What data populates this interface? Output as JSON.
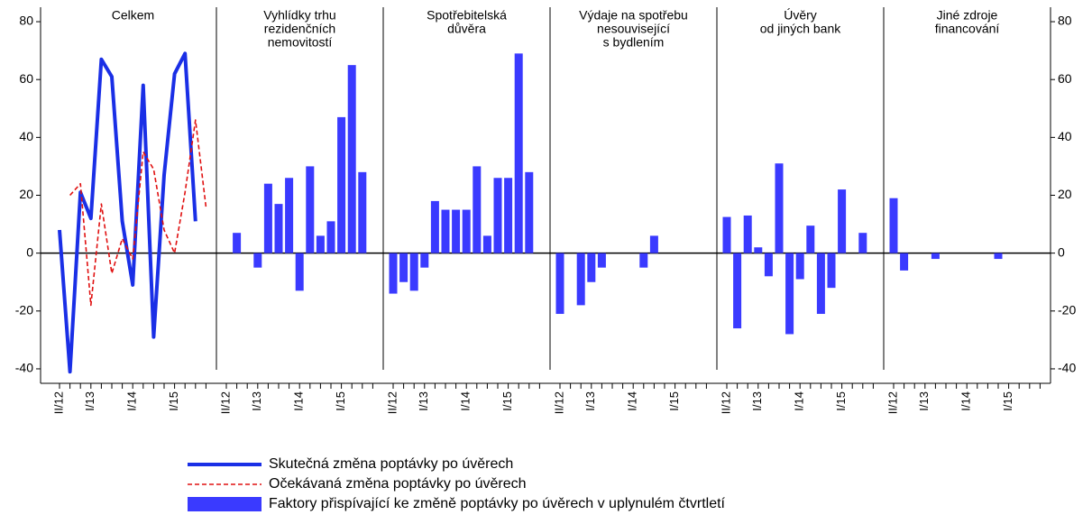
{
  "chart_data": {
    "type": "panel-bar",
    "ylim": [
      -45,
      85
    ],
    "yticks": [
      -40,
      -20,
      0,
      20,
      40,
      60,
      80
    ],
    "categories": [
      "II/12",
      null,
      null,
      "I/13",
      null,
      null,
      null,
      "I/14",
      null,
      null,
      null,
      "I/15",
      null,
      null,
      null
    ],
    "bar_name": "Faktory přispívající ke změně poptávky po úvěrech v uplynulém čtvrtletí",
    "bar_color": "#3a3aff",
    "series": [
      {
        "name": "Skutečná změna poptávky po úvěrech",
        "color": "#1a2fe6",
        "dash": false,
        "panel": 0,
        "values": [
          8,
          -41,
          21,
          12,
          67,
          61,
          11,
          -11,
          58,
          -29,
          27,
          62,
          69,
          11,
          null
        ]
      },
      {
        "name": "Očekávaná změna poptávky po úvěrech",
        "color": "#e01010",
        "dash": true,
        "panel": 0,
        "values": [
          null,
          20,
          24,
          -18,
          17,
          -7,
          5,
          -2,
          35,
          29,
          8,
          0,
          21,
          46,
          16
        ]
      }
    ],
    "panels": [
      {
        "title": [
          "Celkem"
        ],
        "values": null
      },
      {
        "title": [
          "Vyhlídky trhu",
          "rezidenčních",
          "nemovitostí"
        ],
        "values": [
          0,
          7,
          0,
          -5,
          24,
          17,
          26,
          -13,
          30,
          6,
          11,
          47,
          65,
          28
        ]
      },
      {
        "title": [
          "Spotřebitelská",
          "důvěra"
        ],
        "values": [
          -14,
          -10,
          -13,
          -5,
          18,
          15,
          15,
          15,
          30,
          6,
          26,
          26,
          69,
          28
        ]
      },
      {
        "title": [
          "Výdaje na spotřebu",
          "nesouvisející",
          "s bydlením"
        ],
        "values": [
          -21,
          0,
          -18,
          -10,
          -5,
          0,
          0,
          0,
          -5,
          6,
          0,
          0,
          0,
          0
        ]
      },
      {
        "title": [
          "Úvěry",
          "od jiných bank"
        ],
        "values": [
          12.5,
          -26,
          13,
          2,
          -8,
          31,
          -28,
          -9,
          9.5,
          -21,
          -12,
          22,
          0,
          7
        ]
      },
      {
        "title": [
          "Jiné zdroje",
          "financování"
        ],
        "values": [
          19,
          -6,
          0,
          0,
          -2,
          0,
          0,
          0,
          0,
          0,
          -2,
          0,
          0,
          0
        ]
      }
    ]
  }
}
